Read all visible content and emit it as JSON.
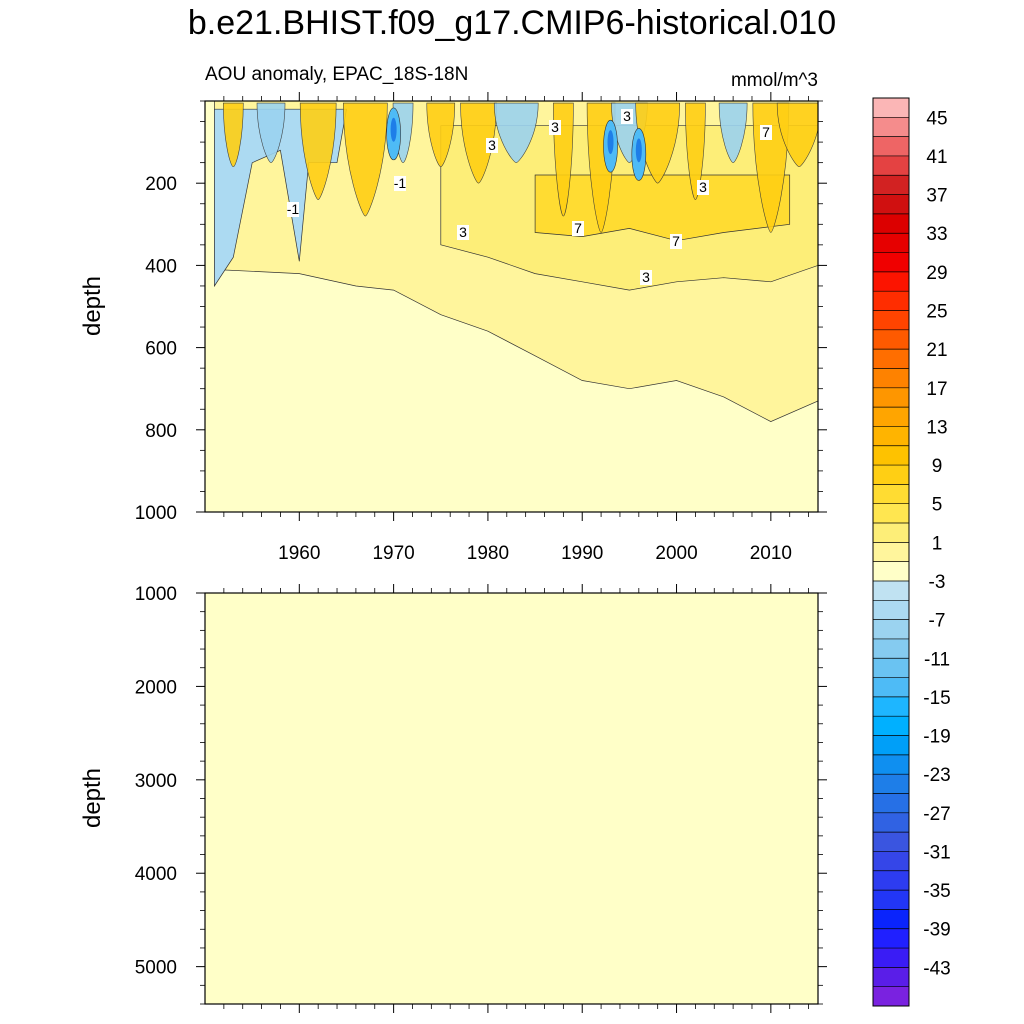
{
  "title": "b.e21.BHIST.f09_g17.CMIP6-historical.010",
  "chart_data": [
    {
      "type": "contour",
      "panel": "upper",
      "subtitle_left": "AOU anomaly, EPAC_18S-18N",
      "subtitle_right": "mmol/m^3",
      "xlabel": "",
      "ylabel": "depth",
      "xlim": [
        1950,
        2015
      ],
      "ylim": [
        1000,
        0
      ],
      "xticks": [
        1960,
        1970,
        1980,
        1990,
        2000,
        2010
      ],
      "xtick_labels": [
        "1960",
        "1970",
        "1980",
        "1990",
        "2000",
        "2010"
      ],
      "yticks": [
        200,
        400,
        600,
        800,
        1000
      ],
      "ytick_labels": [
        "200",
        "400",
        "600",
        "800",
        "1000"
      ],
      "background_level": "1",
      "contour_line_labels": [
        "3",
        "3",
        "3",
        "-1",
        "-1",
        "3",
        "7",
        "7",
        "3",
        "7",
        "3",
        "3"
      ],
      "regions": [
        {
          "level": "3 to 5",
          "description": "anomaly band above ~500-800 m, deepening from ~400 m in 1950s to ~800 m in 2010s",
          "boundary": [
            [
              1951,
              410
            ],
            [
              1960,
              420
            ],
            [
              1966,
              450
            ],
            [
              1970,
              460
            ],
            [
              1975,
              520
            ],
            [
              1980,
              560
            ],
            [
              1985,
              620
            ],
            [
              1990,
              680
            ],
            [
              1995,
              700
            ],
            [
              2000,
              680
            ],
            [
              2005,
              720
            ],
            [
              2010,
              780
            ],
            [
              2015,
              730
            ],
            [
              2015,
              0
            ],
            [
              1951,
              0
            ]
          ]
        },
        {
          "level": "5 to 9",
          "description": "elevated anomaly 100-450 m, strongest after 1985",
          "boundary": [
            [
              1975,
              350
            ],
            [
              1980,
              380
            ],
            [
              1985,
              420
            ],
            [
              1990,
              440
            ],
            [
              1995,
              460
            ],
            [
              2000,
              440
            ],
            [
              2005,
              430
            ],
            [
              2010,
              440
            ],
            [
              2015,
              400
            ],
            [
              2015,
              60
            ],
            [
              1975,
              60
            ]
          ]
        },
        {
          "level": "9 to 13",
          "description": "cores near 250 m around 1988, 1998, 2008",
          "boundary": [
            [
              1985,
              320
            ],
            [
              1990,
              330
            ],
            [
              1995,
              310
            ],
            [
              2000,
              340
            ],
            [
              2005,
              320
            ],
            [
              2012,
              300
            ],
            [
              2012,
              180
            ],
            [
              1985,
              180
            ]
          ]
        },
        {
          "level": "-7 to -1",
          "description": "negative anomaly, upper 450 m in 1950s and near-surface patches 1968-1997",
          "boundary": [
            [
              1951,
              450
            ],
            [
              1953,
              380
            ],
            [
              1955,
              150
            ],
            [
              1958,
              120
            ],
            [
              1960,
              390
            ],
            [
              1961,
              150
            ],
            [
              1964,
              150
            ],
            [
              1965,
              20
            ],
            [
              1951,
              20
            ]
          ]
        },
        {
          "level": "-19 to -11",
          "description": "strong near-surface negative cells ~1970, 1993, 1996",
          "centers": [
            [
              1970,
              80
            ],
            [
              1993,
              110
            ],
            [
              1996,
              130
            ]
          ]
        }
      ]
    },
    {
      "type": "contour",
      "panel": "lower",
      "xlabel": "",
      "ylabel": "depth",
      "xlim": [
        1950,
        2015
      ],
      "ylim": [
        5400,
        1000
      ],
      "xticks": [
        1960,
        1970,
        1980,
        1990,
        2000,
        2010
      ],
      "yticks": [
        1000,
        2000,
        3000,
        4000,
        5000
      ],
      "ytick_labels": [
        "1000",
        "2000",
        "3000",
        "4000",
        "5000"
      ],
      "background_level": "1"
    }
  ],
  "colorbar": {
    "labels": [
      "45",
      "41",
      "37",
      "33",
      "29",
      "25",
      "21",
      "17",
      "13",
      "9",
      "5",
      "1",
      "-3",
      "-7",
      "-11",
      "-15",
      "-19",
      "-23",
      "-27",
      "-31",
      "-35",
      "-39",
      "-43"
    ],
    "colors": [
      "#fbb6b6",
      "#f58c8c",
      "#ee6565",
      "#e44242",
      "#d22222",
      "#d01010",
      "#dc0000",
      "#e60000",
      "#f00000",
      "#fc1400",
      "#ff2d00",
      "#ff4400",
      "#fe5a00",
      "#ff6e00",
      "#fe8200",
      "#fe9600",
      "#ffa500",
      "#ffb400",
      "#fec200",
      "#ffcf14",
      "#ffdc32",
      "#ffe650",
      "#fdee78",
      "#fff59c",
      "#ffffc8",
      "#c0e2f2",
      "#acdaf2",
      "#9bd3f0",
      "#85cbf0",
      "#6ac3f2",
      "#4ebbf6",
      "#1eb6ff",
      "#00b0ff",
      "#009ff8",
      "#0f8ff0",
      "#1e7ee8",
      "#2670e6",
      "#3062e3",
      "#3a55e0",
      "#3546e8",
      "#2d3cf0",
      "#2236f6",
      "#0a24fc",
      "#2020ff",
      "#3a1cf5",
      "#5a1ee8",
      "#7a22e0"
    ]
  }
}
